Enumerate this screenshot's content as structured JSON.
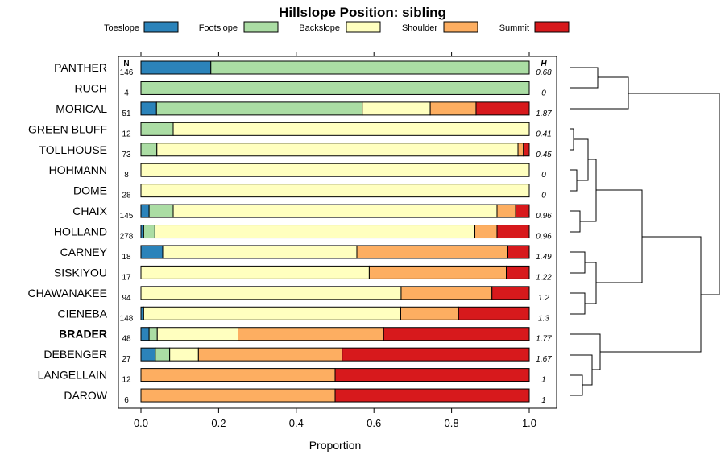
{
  "chart_data": {
    "type": "stacked-bar",
    "title": "Hillslope Position: sibling",
    "xlabel": "Proportion",
    "xlim": [
      0,
      1
    ],
    "x_ticks": [
      "0.0",
      "0.2",
      "0.4",
      "0.6",
      "0.8",
      "1.0"
    ],
    "n_header": "N",
    "h_header": "H",
    "legend": [
      {
        "name": "Toeslope",
        "color": "#2b83ba"
      },
      {
        "name": "Footslope",
        "color": "#abdda4"
      },
      {
        "name": "Backslope",
        "color": "#ffffbf"
      },
      {
        "name": "Shoulder",
        "color": "#fdae61"
      },
      {
        "name": "Summit",
        "color": "#d7191c"
      }
    ],
    "rows": [
      {
        "name": "PANTHER",
        "n": "146",
        "h": "0.68",
        "bold": false,
        "values": [
          0.18,
          0.82,
          0,
          0,
          0
        ]
      },
      {
        "name": "RUCH",
        "n": "4",
        "h": "0",
        "bold": false,
        "values": [
          0,
          1.0,
          0,
          0,
          0
        ]
      },
      {
        "name": "MORICAL",
        "n": "51",
        "h": "1.87",
        "bold": false,
        "values": [
          0.04,
          0.53,
          0.175,
          0.118,
          0.137
        ]
      },
      {
        "name": "GREEN BLUFF",
        "n": "12",
        "h": "0.41",
        "bold": false,
        "values": [
          0,
          0.083,
          0.917,
          0,
          0
        ]
      },
      {
        "name": "TOLLHOUSE",
        "n": "73",
        "h": "0.45",
        "bold": false,
        "values": [
          0,
          0.041,
          0.93,
          0.014,
          0.015
        ]
      },
      {
        "name": "HOHMANN",
        "n": "8",
        "h": "0",
        "bold": false,
        "values": [
          0,
          0,
          1.0,
          0,
          0
        ]
      },
      {
        "name": "DOME",
        "n": "28",
        "h": "0",
        "bold": false,
        "values": [
          0,
          0,
          1.0,
          0,
          0
        ]
      },
      {
        "name": "CHAIX",
        "n": "145",
        "h": "0.96",
        "bold": false,
        "values": [
          0.021,
          0.062,
          0.834,
          0.048,
          0.035
        ]
      },
      {
        "name": "HOLLAND",
        "n": "278",
        "h": "0.96",
        "bold": false,
        "values": [
          0.007,
          0.029,
          0.824,
          0.057,
          0.083
        ]
      },
      {
        "name": "CARNEY",
        "n": "18",
        "h": "1.49",
        "bold": false,
        "values": [
          0.056,
          0,
          0.5,
          0.389,
          0.055
        ]
      },
      {
        "name": "SISKIYOU",
        "n": "17",
        "h": "1.22",
        "bold": false,
        "values": [
          0,
          0,
          0.588,
          0.353,
          0.059
        ]
      },
      {
        "name": "CHAWANAKEE",
        "n": "94",
        "h": "1.2",
        "bold": false,
        "values": [
          0,
          0,
          0.67,
          0.234,
          0.096
        ]
      },
      {
        "name": "CIENEBA",
        "n": "148",
        "h": "1.3",
        "bold": false,
        "values": [
          0.007,
          0,
          0.662,
          0.149,
          0.182
        ]
      },
      {
        "name": "BRADER",
        "n": "48",
        "h": "1.77",
        "bold": true,
        "values": [
          0.021,
          0.021,
          0.208,
          0.375,
          0.375
        ]
      },
      {
        "name": "DEBENGER",
        "n": "27",
        "h": "1.67",
        "bold": false,
        "values": [
          0.037,
          0.037,
          0.074,
          0.37,
          0.482
        ]
      },
      {
        "name": "LANGELLAIN",
        "n": "12",
        "h": "1",
        "bold": false,
        "values": [
          0,
          0,
          0,
          0.5,
          0.5
        ]
      },
      {
        "name": "DAROW",
        "n": "6",
        "h": "1",
        "bold": false,
        "values": [
          0,
          0,
          0,
          0.5,
          0.5
        ]
      }
    ]
  }
}
